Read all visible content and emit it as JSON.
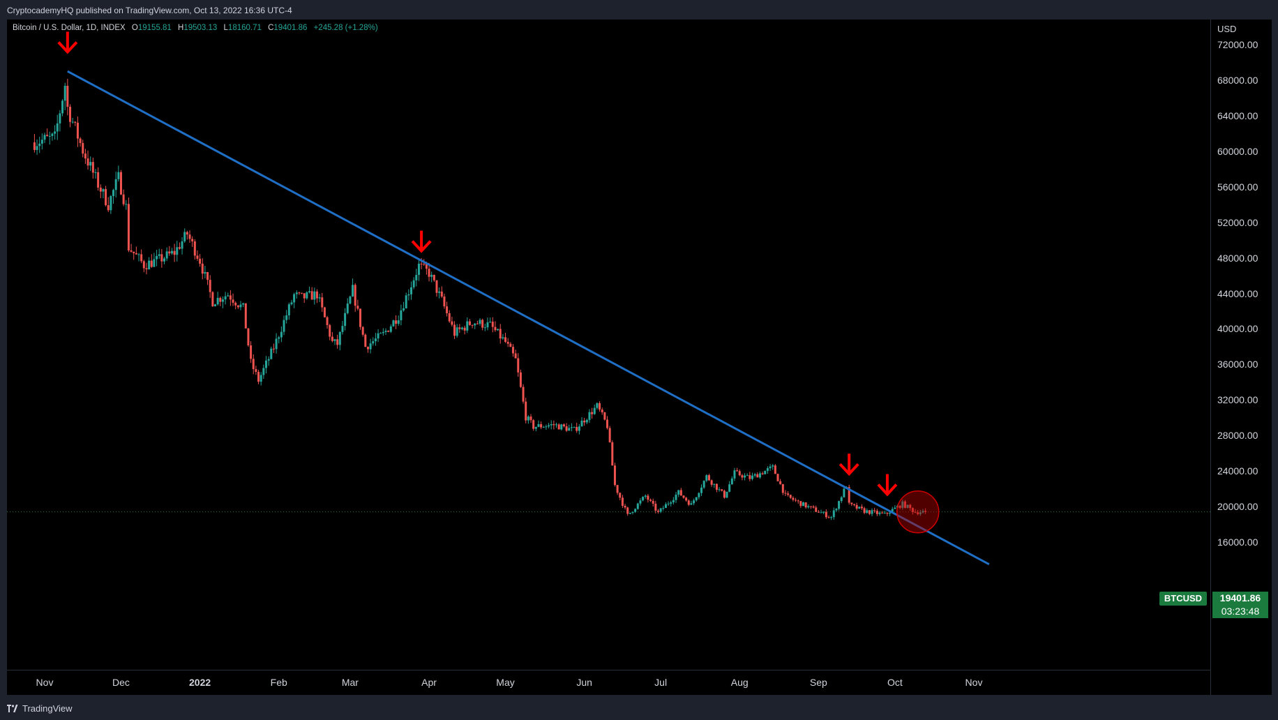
{
  "header": {
    "published": "CryptocademyHQ published on TradingView.com, Oct 13, 2022 16:36 UTC-4"
  },
  "legend": {
    "symbol": "Bitcoin / U.S. Dollar, 1D, INDEX",
    "o_label": "O",
    "o": "19155.81",
    "h_label": "H",
    "h": "19503.13",
    "l_label": "L",
    "l": "18160.71",
    "c_label": "C",
    "c": "19401.86",
    "change": "+245.28 (+1.28%)"
  },
  "price_axis": {
    "currency": "USD",
    "ticks": [
      "72000.00",
      "68000.00",
      "64000.00",
      "60000.00",
      "56000.00",
      "52000.00",
      "48000.00",
      "44000.00",
      "40000.00",
      "36000.00",
      "32000.00",
      "28000.00",
      "24000.00",
      "20000.00",
      "16000.00"
    ]
  },
  "time_axis": {
    "labels": [
      "Nov",
      "Dec",
      "2022",
      "Feb",
      "Mar",
      "Apr",
      "May",
      "Jun",
      "Jul",
      "Aug",
      "Sep",
      "Oct",
      "Nov"
    ]
  },
  "last_price": {
    "symbol": "BTCUSD",
    "price": "19401.86",
    "countdown": "03:23:48"
  },
  "footer": {
    "brand": "TradingView"
  },
  "colors": {
    "up": "#26a69a",
    "down": "#ef5350",
    "trendline": "#1e6fc5",
    "arrow": "#ff0000",
    "tag": "#1b7a3d"
  },
  "chart_data": {
    "type": "candlestick",
    "symbol": "Bitcoin / U.S. Dollar",
    "interval": "1D",
    "ylim": [
      14000,
      74000
    ],
    "y_ticks": [
      16000,
      20000,
      24000,
      28000,
      32000,
      36000,
      40000,
      44000,
      48000,
      52000,
      56000,
      60000,
      64000,
      68000,
      72000
    ],
    "x_ticks": [
      "Nov",
      "Dec",
      "2022",
      "Feb",
      "Mar",
      "Apr",
      "May",
      "Jun",
      "Jul",
      "Aug",
      "Sep",
      "Oct",
      "Nov"
    ],
    "anchors": [
      {
        "date": "2021-10-28",
        "close": 61000
      },
      {
        "date": "2021-11-01",
        "close": 61300
      },
      {
        "date": "2021-11-05",
        "close": 61500
      },
      {
        "date": "2021-11-09",
        "close": 67500
      },
      {
        "date": "2021-11-10",
        "close": 64900
      },
      {
        "date": "2021-11-16",
        "close": 60100
      },
      {
        "date": "2021-11-22",
        "close": 56300
      },
      {
        "date": "2021-11-26",
        "close": 54000
      },
      {
        "date": "2021-11-30",
        "close": 57000
      },
      {
        "date": "2021-12-03",
        "close": 53700
      },
      {
        "date": "2021-12-04",
        "close": 49200
      },
      {
        "date": "2021-12-10",
        "close": 47200
      },
      {
        "date": "2021-12-16",
        "close": 47800
      },
      {
        "date": "2021-12-22",
        "close": 48600
      },
      {
        "date": "2021-12-27",
        "close": 50700
      },
      {
        "date": "2022-01-01",
        "close": 47700
      },
      {
        "date": "2022-01-06",
        "close": 43100
      },
      {
        "date": "2022-01-12",
        "close": 43900
      },
      {
        "date": "2022-01-18",
        "close": 42300
      },
      {
        "date": "2022-01-21",
        "close": 36200
      },
      {
        "date": "2022-01-24",
        "close": 34200
      },
      {
        "date": "2022-01-30",
        "close": 37900
      },
      {
        "date": "2022-02-07",
        "close": 43800
      },
      {
        "date": "2022-02-10",
        "close": 43500
      },
      {
        "date": "2022-02-16",
        "close": 43900
      },
      {
        "date": "2022-02-22",
        "close": 38500
      },
      {
        "date": "2022-02-24",
        "close": 38300
      },
      {
        "date": "2022-03-02",
        "close": 44400
      },
      {
        "date": "2022-03-07",
        "close": 38000
      },
      {
        "date": "2022-03-14",
        "close": 39400
      },
      {
        "date": "2022-03-20",
        "close": 41500
      },
      {
        "date": "2022-03-28",
        "close": 47100
      },
      {
        "date": "2022-04-01",
        "close": 46300
      },
      {
        "date": "2022-04-06",
        "close": 43200
      },
      {
        "date": "2022-04-11",
        "close": 39500
      },
      {
        "date": "2022-04-18",
        "close": 40800
      },
      {
        "date": "2022-04-25",
        "close": 40400
      },
      {
        "date": "2022-05-01",
        "close": 38500
      },
      {
        "date": "2022-05-05",
        "close": 36500
      },
      {
        "date": "2022-05-09",
        "close": 30100
      },
      {
        "date": "2022-05-12",
        "close": 29000
      },
      {
        "date": "2022-05-20",
        "close": 29200
      },
      {
        "date": "2022-05-28",
        "close": 28600
      },
      {
        "date": "2022-06-01",
        "close": 29800
      },
      {
        "date": "2022-06-06",
        "close": 31300
      },
      {
        "date": "2022-06-10",
        "close": 29100
      },
      {
        "date": "2022-06-13",
        "close": 22400
      },
      {
        "date": "2022-06-18",
        "close": 19000
      },
      {
        "date": "2022-06-25",
        "close": 21200
      },
      {
        "date": "2022-06-30",
        "close": 19300
      },
      {
        "date": "2022-07-08",
        "close": 21600
      },
      {
        "date": "2022-07-13",
        "close": 20200
      },
      {
        "date": "2022-07-19",
        "close": 23400
      },
      {
        "date": "2022-07-26",
        "close": 21200
      },
      {
        "date": "2022-07-30",
        "close": 23800
      },
      {
        "date": "2022-08-05",
        "close": 23200
      },
      {
        "date": "2022-08-14",
        "close": 24400
      },
      {
        "date": "2022-08-19",
        "close": 21200
      },
      {
        "date": "2022-08-26",
        "close": 20200
      },
      {
        "date": "2022-09-06",
        "close": 18800
      },
      {
        "date": "2022-09-12",
        "close": 22400
      },
      {
        "date": "2022-09-13",
        "close": 20200
      },
      {
        "date": "2022-09-19",
        "close": 19500
      },
      {
        "date": "2022-09-27",
        "close": 19100
      },
      {
        "date": "2022-10-04",
        "close": 20300
      },
      {
        "date": "2022-10-09",
        "close": 19400
      },
      {
        "date": "2022-10-13",
        "close": 19401.86
      }
    ],
    "trendline": {
      "start": {
        "date": "2021-11-10",
        "price": 69000
      },
      "end": {
        "date": "2022-11-07",
        "price": 13500
      }
    },
    "arrows": [
      {
        "date": "2021-11-10",
        "price": 72200
      },
      {
        "date": "2022-03-29",
        "price": 49800
      },
      {
        "date": "2022-09-13",
        "price": 24700
      },
      {
        "date": "2022-09-28",
        "price": 22400
      }
    ],
    "highlight_circle": {
      "date": "2022-10-10",
      "price": 19400
    },
    "last_close": 19401.86
  }
}
